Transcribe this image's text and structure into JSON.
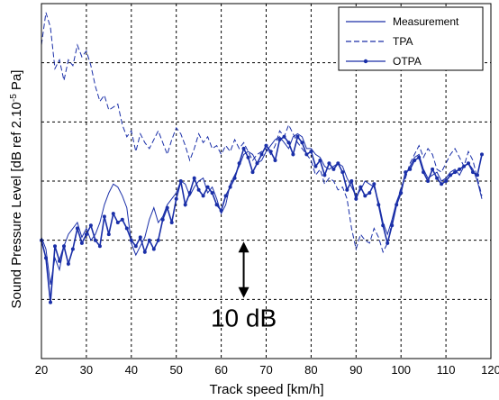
{
  "chart_data": {
    "type": "line",
    "xlabel": "Track speed [km/h]",
    "ylabel": "Sound Pressure Level [dB ref 2.10",
    "ylabel_sup": "-5",
    "ylabel_end": " Pa]",
    "xlim": [
      20,
      120
    ],
    "xticks": [
      20,
      30,
      40,
      50,
      60,
      70,
      80,
      90,
      100,
      110,
      120
    ],
    "ylim": [
      0,
      6
    ],
    "yticks": [
      0,
      1,
      2,
      3,
      4,
      5,
      6
    ],
    "y_tick_labels_shown": false,
    "grid": true,
    "legend_position": "top-right",
    "annotation": {
      "text": "10 dB",
      "x": 65,
      "y_from": 2.0,
      "y_to": 1.0
    },
    "series": [
      {
        "name": "Measurement",
        "style": "solid",
        "color": "#1a2fa8",
        "points": [
          [
            20,
            2.05
          ],
          [
            21,
            1.85
          ],
          [
            22,
            1.25
          ],
          [
            23,
            1.7
          ],
          [
            24,
            1.5
          ],
          [
            25,
            1.9
          ],
          [
            26,
            2.1
          ],
          [
            27,
            2.2
          ],
          [
            28,
            2.3
          ],
          [
            29,
            2.05
          ],
          [
            30,
            2.2
          ],
          [
            31,
            2.0
          ],
          [
            32,
            2.1
          ],
          [
            33,
            2.3
          ],
          [
            34,
            2.6
          ],
          [
            35,
            2.8
          ],
          [
            36,
            2.95
          ],
          [
            37,
            2.9
          ],
          [
            38,
            2.75
          ],
          [
            39,
            2.55
          ],
          [
            40,
            1.95
          ],
          [
            41,
            1.75
          ],
          [
            42,
            1.9
          ],
          [
            43,
            2.05
          ],
          [
            44,
            2.35
          ],
          [
            45,
            2.55
          ],
          [
            46,
            2.3
          ],
          [
            47,
            2.4
          ],
          [
            48,
            2.6
          ],
          [
            49,
            2.7
          ],
          [
            50,
            2.8
          ],
          [
            51,
            3.0
          ],
          [
            52,
            2.95
          ],
          [
            53,
            2.75
          ],
          [
            54,
            2.9
          ],
          [
            55,
            3.0
          ],
          [
            56,
            3.05
          ],
          [
            57,
            2.8
          ],
          [
            58,
            2.9
          ],
          [
            59,
            2.7
          ],
          [
            60,
            2.45
          ],
          [
            61,
            2.6
          ],
          [
            62,
            2.95
          ],
          [
            63,
            3.1
          ],
          [
            64,
            3.25
          ],
          [
            65,
            3.45
          ],
          [
            66,
            3.5
          ],
          [
            67,
            3.45
          ],
          [
            68,
            3.3
          ],
          [
            69,
            3.35
          ],
          [
            70,
            3.5
          ],
          [
            71,
            3.6
          ],
          [
            72,
            3.7
          ],
          [
            73,
            3.75
          ],
          [
            74,
            3.65
          ],
          [
            75,
            3.55
          ],
          [
            76,
            3.75
          ],
          [
            77,
            3.8
          ],
          [
            78,
            3.75
          ],
          [
            79,
            3.55
          ],
          [
            80,
            3.55
          ],
          [
            81,
            3.45
          ],
          [
            82,
            3.4
          ],
          [
            83,
            3.25
          ],
          [
            84,
            3.2
          ],
          [
            85,
            3.25
          ],
          [
            86,
            3.3
          ],
          [
            87,
            3.25
          ],
          [
            88,
            3.05
          ],
          [
            89,
            2.9
          ],
          [
            90,
            2.75
          ],
          [
            91,
            2.85
          ],
          [
            92,
            3.0
          ],
          [
            93,
            2.95
          ],
          [
            94,
            2.9
          ],
          [
            95,
            2.65
          ],
          [
            96,
            2.3
          ],
          [
            97,
            2.1
          ],
          [
            98,
            2.35
          ],
          [
            99,
            2.65
          ],
          [
            100,
            2.85
          ],
          [
            101,
            3.1
          ],
          [
            102,
            3.25
          ],
          [
            103,
            3.4
          ],
          [
            104,
            3.45
          ],
          [
            105,
            3.2
          ],
          [
            106,
            3.05
          ],
          [
            107,
            3.1
          ],
          [
            108,
            3.15
          ],
          [
            109,
            3.0
          ],
          [
            110,
            3.05
          ],
          [
            111,
            3.15
          ],
          [
            112,
            3.2
          ],
          [
            113,
            3.1
          ],
          [
            114,
            3.25
          ],
          [
            115,
            3.3
          ],
          [
            116,
            3.2
          ],
          [
            117,
            3.0
          ],
          [
            118,
            2.7
          ]
        ]
      },
      {
        "name": "TPA",
        "style": "dashed",
        "color": "#1a2fa8",
        "points": [
          [
            20,
            5.3
          ],
          [
            21,
            5.85
          ],
          [
            22,
            5.6
          ],
          [
            23,
            4.9
          ],
          [
            24,
            5.05
          ],
          [
            25,
            4.7
          ],
          [
            26,
            5.05
          ],
          [
            27,
            4.95
          ],
          [
            28,
            5.3
          ],
          [
            29,
            5.1
          ],
          [
            30,
            5.2
          ],
          [
            31,
            4.95
          ],
          [
            32,
            4.6
          ],
          [
            33,
            4.35
          ],
          [
            34,
            4.45
          ],
          [
            35,
            4.2
          ],
          [
            36,
            4.25
          ],
          [
            37,
            4.3
          ],
          [
            38,
            3.95
          ],
          [
            39,
            3.75
          ],
          [
            40,
            3.85
          ],
          [
            41,
            3.5
          ],
          [
            42,
            3.8
          ],
          [
            43,
            3.65
          ],
          [
            44,
            3.55
          ],
          [
            45,
            3.7
          ],
          [
            46,
            3.85
          ],
          [
            47,
            3.65
          ],
          [
            48,
            3.45
          ],
          [
            49,
            3.7
          ],
          [
            50,
            3.9
          ],
          [
            51,
            3.8
          ],
          [
            52,
            3.6
          ],
          [
            53,
            3.35
          ],
          [
            54,
            3.55
          ],
          [
            55,
            3.8
          ],
          [
            56,
            3.65
          ],
          [
            57,
            3.75
          ],
          [
            58,
            3.55
          ],
          [
            59,
            3.6
          ],
          [
            60,
            3.45
          ],
          [
            61,
            3.6
          ],
          [
            62,
            3.5
          ],
          [
            63,
            3.7
          ],
          [
            64,
            3.55
          ],
          [
            65,
            3.65
          ],
          [
            66,
            3.5
          ],
          [
            67,
            3.35
          ],
          [
            68,
            3.45
          ],
          [
            69,
            3.5
          ],
          [
            70,
            3.55
          ],
          [
            71,
            3.45
          ],
          [
            72,
            3.6
          ],
          [
            73,
            3.85
          ],
          [
            74,
            3.75
          ],
          [
            75,
            3.95
          ],
          [
            76,
            3.8
          ],
          [
            77,
            3.65
          ],
          [
            78,
            3.55
          ],
          [
            79,
            3.45
          ],
          [
            80,
            3.35
          ],
          [
            81,
            3.1
          ],
          [
            82,
            3.2
          ],
          [
            83,
            2.95
          ],
          [
            84,
            3.05
          ],
          [
            85,
            3.0
          ],
          [
            86,
            2.85
          ],
          [
            87,
            2.9
          ],
          [
            88,
            2.7
          ],
          [
            89,
            2.2
          ],
          [
            90,
            1.85
          ],
          [
            91,
            2.1
          ],
          [
            92,
            2.0
          ],
          [
            93,
            1.95
          ],
          [
            94,
            2.2
          ],
          [
            95,
            2.05
          ],
          [
            96,
            1.8
          ],
          [
            97,
            1.95
          ],
          [
            98,
            2.3
          ],
          [
            99,
            2.6
          ],
          [
            100,
            2.9
          ],
          [
            101,
            3.05
          ],
          [
            102,
            3.3
          ],
          [
            103,
            3.45
          ],
          [
            104,
            3.6
          ],
          [
            105,
            3.4
          ],
          [
            106,
            3.55
          ],
          [
            107,
            3.45
          ],
          [
            108,
            3.2
          ],
          [
            109,
            3.15
          ],
          [
            110,
            3.3
          ],
          [
            111,
            3.45
          ],
          [
            112,
            3.55
          ],
          [
            113,
            3.4
          ],
          [
            114,
            3.25
          ],
          [
            115,
            3.5
          ],
          [
            116,
            3.35
          ],
          [
            117,
            3.05
          ],
          [
            118,
            2.75
          ]
        ]
      },
      {
        "name": "OTPA",
        "style": "solid-dot",
        "color": "#1a2fa8",
        "points": [
          [
            20,
            2.0
          ],
          [
            21,
            1.7
          ],
          [
            22,
            0.95
          ],
          [
            23,
            1.9
          ],
          [
            24,
            1.65
          ],
          [
            25,
            1.9
          ],
          [
            26,
            1.6
          ],
          [
            27,
            1.85
          ],
          [
            28,
            2.2
          ],
          [
            29,
            1.95
          ],
          [
            30,
            2.1
          ],
          [
            31,
            2.25
          ],
          [
            32,
            2.0
          ],
          [
            33,
            1.9
          ],
          [
            34,
            2.4
          ],
          [
            35,
            2.1
          ],
          [
            36,
            2.45
          ],
          [
            37,
            2.3
          ],
          [
            38,
            2.35
          ],
          [
            39,
            2.2
          ],
          [
            40,
            2.0
          ],
          [
            41,
            1.9
          ],
          [
            42,
            2.05
          ],
          [
            43,
            1.8
          ],
          [
            44,
            2.0
          ],
          [
            45,
            1.85
          ],
          [
            46,
            2.0
          ],
          [
            47,
            2.35
          ],
          [
            48,
            2.55
          ],
          [
            49,
            2.3
          ],
          [
            50,
            2.7
          ],
          [
            51,
            3.0
          ],
          [
            52,
            2.6
          ],
          [
            53,
            2.8
          ],
          [
            54,
            3.05
          ],
          [
            55,
            2.85
          ],
          [
            56,
            2.75
          ],
          [
            57,
            2.9
          ],
          [
            58,
            2.8
          ],
          [
            59,
            2.6
          ],
          [
            60,
            2.5
          ],
          [
            61,
            2.75
          ],
          [
            62,
            2.9
          ],
          [
            63,
            3.05
          ],
          [
            64,
            3.3
          ],
          [
            65,
            3.55
          ],
          [
            66,
            3.4
          ],
          [
            67,
            3.15
          ],
          [
            68,
            3.3
          ],
          [
            69,
            3.45
          ],
          [
            70,
            3.6
          ],
          [
            71,
            3.5
          ],
          [
            72,
            3.35
          ],
          [
            73,
            3.7
          ],
          [
            74,
            3.75
          ],
          [
            75,
            3.65
          ],
          [
            76,
            3.45
          ],
          [
            77,
            3.75
          ],
          [
            78,
            3.65
          ],
          [
            79,
            3.45
          ],
          [
            80,
            3.5
          ],
          [
            81,
            3.25
          ],
          [
            82,
            3.35
          ],
          [
            83,
            3.1
          ],
          [
            84,
            3.3
          ],
          [
            85,
            3.2
          ],
          [
            86,
            3.3
          ],
          [
            87,
            3.15
          ],
          [
            88,
            2.85
          ],
          [
            89,
            3.0
          ],
          [
            90,
            2.7
          ],
          [
            91,
            2.9
          ],
          [
            92,
            2.75
          ],
          [
            93,
            2.8
          ],
          [
            94,
            2.95
          ],
          [
            95,
            2.6
          ],
          [
            96,
            2.25
          ],
          [
            97,
            1.95
          ],
          [
            98,
            2.25
          ],
          [
            99,
            2.6
          ],
          [
            100,
            2.8
          ],
          [
            101,
            3.15
          ],
          [
            102,
            3.2
          ],
          [
            103,
            3.35
          ],
          [
            104,
            3.4
          ],
          [
            105,
            3.15
          ],
          [
            106,
            3.0
          ],
          [
            107,
            3.2
          ],
          [
            108,
            3.05
          ],
          [
            109,
            2.95
          ],
          [
            110,
            3.0
          ],
          [
            111,
            3.1
          ],
          [
            112,
            3.15
          ],
          [
            113,
            3.2
          ],
          [
            114,
            3.25
          ],
          [
            115,
            3.3
          ],
          [
            116,
            3.15
          ],
          [
            117,
            3.1
          ],
          [
            118,
            3.45
          ]
        ]
      }
    ]
  }
}
